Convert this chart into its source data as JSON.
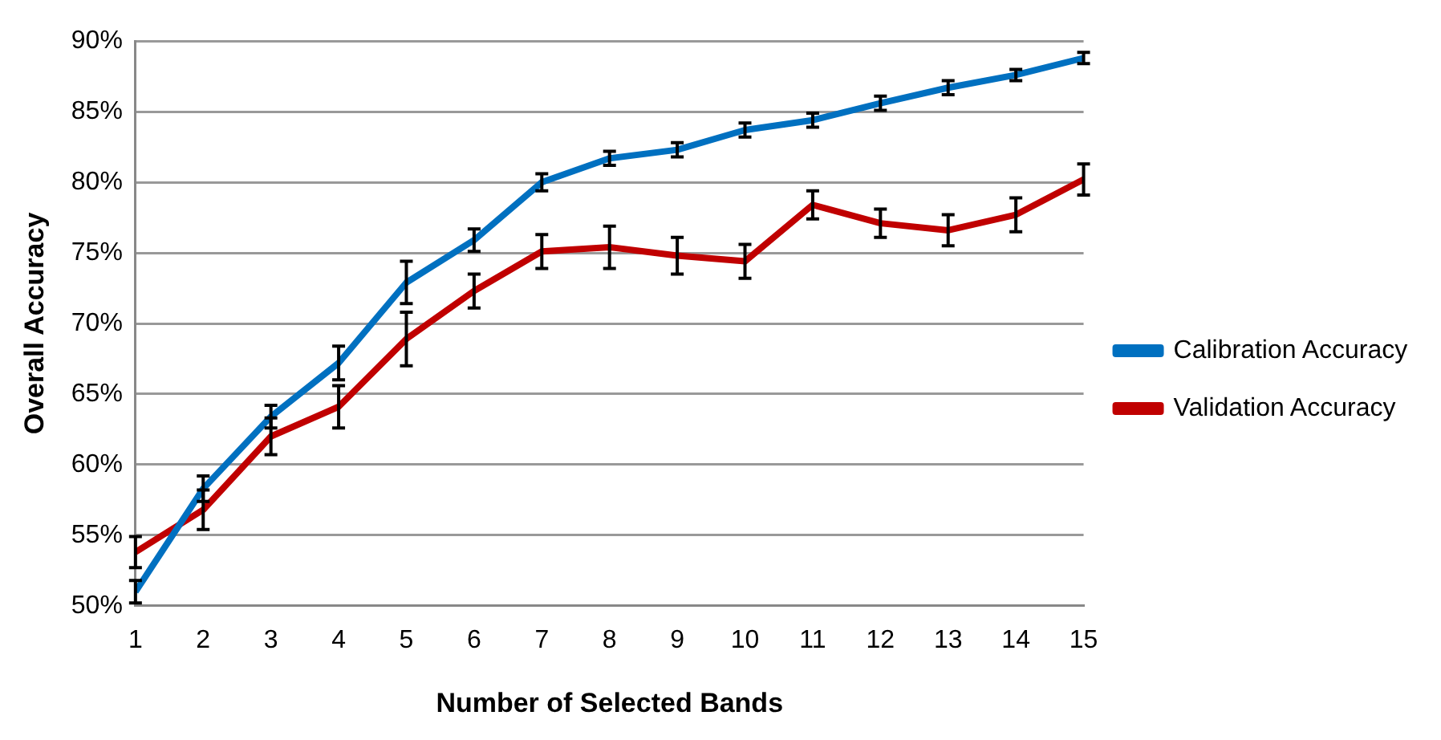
{
  "chart_data": {
    "type": "line",
    "xlabel": "Number of Selected Bands",
    "ylabel": "Overall Accuracy",
    "x": [
      1,
      2,
      3,
      4,
      5,
      6,
      7,
      8,
      9,
      10,
      11,
      12,
      13,
      14,
      15
    ],
    "xlim": [
      1,
      15
    ],
    "xticks": [
      1,
      2,
      3,
      4,
      5,
      6,
      7,
      8,
      9,
      10,
      11,
      12,
      13,
      14,
      15
    ],
    "ylim": [
      50,
      90
    ],
    "yticks": [
      {
        "value": 50,
        "label": "50%"
      },
      {
        "value": 55,
        "label": "55%"
      },
      {
        "value": 60,
        "label": "60%"
      },
      {
        "value": 65,
        "label": "65%"
      },
      {
        "value": 70,
        "label": "70%"
      },
      {
        "value": 75,
        "label": "75%"
      },
      {
        "value": 80,
        "label": "80%"
      },
      {
        "value": 85,
        "label": "85%"
      },
      {
        "value": 90,
        "label": "90%"
      }
    ],
    "grid": "y",
    "legend": "right",
    "line_style": "solid",
    "series": [
      {
        "name": "Calibration Accuracy",
        "color": "#0070c0",
        "values": [
          51.0,
          58.3,
          63.4,
          67.2,
          72.9,
          75.9,
          80.0,
          81.7,
          82.3,
          83.7,
          84.4,
          85.6,
          86.7,
          87.6,
          88.8
        ],
        "errors": [
          0.8,
          0.9,
          0.8,
          1.2,
          1.5,
          0.8,
          0.6,
          0.5,
          0.5,
          0.5,
          0.5,
          0.5,
          0.5,
          0.4,
          0.4
        ]
      },
      {
        "name": "Validation Accuracy",
        "color": "#c00000",
        "values": [
          53.8,
          56.8,
          62.0,
          64.1,
          68.9,
          72.3,
          75.1,
          75.4,
          74.8,
          74.4,
          78.4,
          77.1,
          76.6,
          77.7,
          80.2
        ],
        "errors": [
          1.1,
          1.4,
          1.3,
          1.5,
          1.9,
          1.2,
          1.2,
          1.5,
          1.3,
          1.2,
          1.0,
          1.0,
          1.1,
          1.2,
          1.1
        ]
      }
    ]
  }
}
